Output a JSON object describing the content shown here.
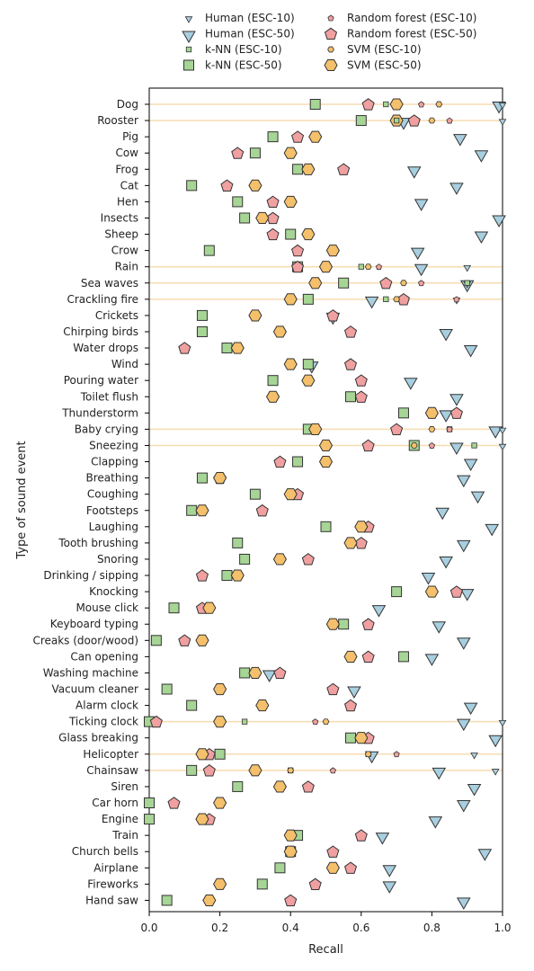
{
  "chart_data": {
    "type": "scatter",
    "xlabel": "Recall",
    "ylabel": "Type of sound event",
    "xlim": [
      0.0,
      1.0
    ],
    "xticks": [
      "0.0",
      "0.2",
      "0.4",
      "0.6",
      "0.8",
      "1.0"
    ],
    "legend_position": "top",
    "categories": [
      "Dog",
      "Rooster",
      "Pig",
      "Cow",
      "Frog",
      "Cat",
      "Hen",
      "Insects",
      "Sheep",
      "Crow",
      "Rain",
      "Sea waves",
      "Crackling fire",
      "Crickets",
      "Chirping birds",
      "Water drops",
      "Wind",
      "Pouring water",
      "Toilet flush",
      "Thunderstorm",
      "Baby crying",
      "Sneezing",
      "Clapping",
      "Breathing",
      "Coughing",
      "Footsteps",
      "Laughing",
      "Tooth brushing",
      "Snoring",
      "Drinking / sipping",
      "Knocking",
      "Mouse click",
      "Keyboard typing",
      "Creaks (door/wood)",
      "Can opening",
      "Washing machine",
      "Vacuum cleaner",
      "Alarm clock",
      "Ticking clock",
      "Glass breaking",
      "Helicopter",
      "Chainsaw",
      "Siren",
      "Car horn",
      "Engine",
      "Train",
      "Church bells",
      "Airplane",
      "Fireworks",
      "Hand saw"
    ],
    "esc10_categories": [
      "Dog",
      "Rooster",
      "Rain",
      "Sea waves",
      "Crackling fire",
      "Baby crying",
      "Sneezing",
      "Ticking clock",
      "Helicopter",
      "Chainsaw"
    ],
    "series": [
      {
        "name": "Human (ESC-10)",
        "marker": "triangle",
        "size": "small",
        "color": "#a8cfe0",
        "values": [
          1.0,
          1.0,
          null,
          null,
          null,
          null,
          null,
          null,
          null,
          null,
          0.9,
          0.9,
          0.87,
          null,
          null,
          null,
          null,
          null,
          null,
          null,
          1.0,
          1.0,
          null,
          null,
          null,
          null,
          null,
          null,
          null,
          null,
          null,
          null,
          null,
          null,
          null,
          null,
          null,
          null,
          1.0,
          null,
          0.92,
          0.98,
          null,
          null,
          null,
          null,
          null,
          null,
          null,
          null
        ]
      },
      {
        "name": "Human (ESC-50)",
        "marker": "triangle",
        "size": "large",
        "color": "#a8cfe0",
        "values": [
          0.99,
          0.72,
          0.88,
          0.94,
          0.75,
          0.87,
          0.77,
          0.99,
          0.94,
          0.76,
          0.77,
          0.9,
          0.63,
          0.52,
          0.84,
          0.91,
          0.46,
          0.74,
          0.87,
          0.84,
          0.98,
          0.87,
          0.91,
          0.89,
          0.93,
          0.83,
          0.97,
          0.89,
          0.84,
          0.79,
          0.9,
          0.65,
          0.82,
          0.89,
          0.8,
          0.34,
          0.58,
          0.91,
          0.89,
          0.98,
          0.63,
          0.82,
          0.92,
          0.89,
          0.81,
          0.66,
          0.95,
          0.68,
          0.68,
          0.89
        ]
      },
      {
        "name": "k-NN (ESC-10)",
        "marker": "square",
        "size": "small",
        "color": "#a6d596",
        "values": [
          0.67,
          0.7,
          null,
          null,
          null,
          null,
          null,
          null,
          null,
          null,
          0.6,
          0.9,
          0.67,
          null,
          null,
          null,
          null,
          null,
          null,
          null,
          0.85,
          0.92,
          null,
          null,
          null,
          null,
          null,
          null,
          null,
          null,
          null,
          null,
          null,
          null,
          null,
          null,
          null,
          null,
          0.27,
          null,
          0.62,
          0.4,
          null,
          null,
          null,
          null,
          null,
          null,
          null,
          null
        ]
      },
      {
        "name": "k-NN (ESC-50)",
        "marker": "square",
        "size": "large",
        "color": "#a6d596",
        "values": [
          0.47,
          0.6,
          0.35,
          0.3,
          0.42,
          0.12,
          0.25,
          0.27,
          0.4,
          0.17,
          0.42,
          0.55,
          0.45,
          0.15,
          0.15,
          0.22,
          0.45,
          0.35,
          0.57,
          0.72,
          0.45,
          0.75,
          0.42,
          0.15,
          0.3,
          0.12,
          0.5,
          0.25,
          0.27,
          0.22,
          0.7,
          0.07,
          0.55,
          0.02,
          0.72,
          0.27,
          0.05,
          0.12,
          0.0,
          0.57,
          0.2,
          0.12,
          0.25,
          0.0,
          0.0,
          0.42,
          0.4,
          0.37,
          0.32,
          0.05
        ]
      },
      {
        "name": "Random forest (ESC-10)",
        "marker": "pentagon",
        "size": "small",
        "color": "#f0a0a0",
        "values": [
          0.77,
          0.85,
          null,
          null,
          null,
          null,
          null,
          null,
          null,
          null,
          0.65,
          0.77,
          0.87,
          null,
          null,
          null,
          null,
          null,
          null,
          null,
          0.85,
          0.8,
          null,
          null,
          null,
          null,
          null,
          null,
          null,
          null,
          null,
          null,
          null,
          null,
          null,
          null,
          null,
          null,
          0.47,
          null,
          0.7,
          0.52,
          null,
          null,
          null,
          null,
          null,
          null,
          null,
          null
        ]
      },
      {
        "name": "Random forest (ESC-50)",
        "marker": "pentagon",
        "size": "large",
        "color": "#f0a0a0",
        "values": [
          0.62,
          0.75,
          0.42,
          0.25,
          0.55,
          0.22,
          0.35,
          0.35,
          0.35,
          0.42,
          0.42,
          0.67,
          0.72,
          0.52,
          0.57,
          0.1,
          0.57,
          0.6,
          0.6,
          0.87,
          0.7,
          0.62,
          0.37,
          0.2,
          0.42,
          0.32,
          0.62,
          0.6,
          0.45,
          0.15,
          0.87,
          0.15,
          0.62,
          0.1,
          0.62,
          0.37,
          0.52,
          0.57,
          0.02,
          0.62,
          0.17,
          0.17,
          0.45,
          0.07,
          0.17,
          0.6,
          0.52,
          0.57,
          0.47,
          0.4
        ]
      },
      {
        "name": "SVM (ESC-10)",
        "marker": "hexagon",
        "size": "small",
        "color": "#f5c06b",
        "values": [
          0.82,
          0.8,
          null,
          null,
          null,
          null,
          null,
          null,
          null,
          null,
          0.62,
          0.72,
          0.7,
          null,
          null,
          null,
          null,
          null,
          null,
          null,
          0.8,
          0.75,
          null,
          null,
          null,
          null,
          null,
          null,
          null,
          null,
          null,
          null,
          null,
          null,
          null,
          null,
          null,
          null,
          0.5,
          null,
          0.62,
          0.4,
          null,
          null,
          null,
          null,
          null,
          null,
          null,
          null
        ]
      },
      {
        "name": "SVM (ESC-50)",
        "marker": "hexagon",
        "size": "large",
        "color": "#f5c06b",
        "values": [
          0.7,
          0.7,
          0.47,
          0.4,
          0.45,
          0.3,
          0.4,
          0.32,
          0.45,
          0.52,
          0.5,
          0.47,
          0.4,
          0.3,
          0.37,
          0.25,
          0.4,
          0.45,
          0.35,
          0.8,
          0.47,
          0.5,
          0.5,
          0.2,
          0.4,
          0.15,
          0.6,
          0.57,
          0.37,
          0.25,
          0.8,
          0.17,
          0.52,
          0.15,
          0.57,
          0.3,
          0.2,
          0.32,
          0.2,
          0.6,
          0.15,
          0.3,
          0.37,
          0.2,
          0.15,
          0.4,
          0.4,
          0.52,
          0.2,
          0.17
        ]
      }
    ]
  }
}
